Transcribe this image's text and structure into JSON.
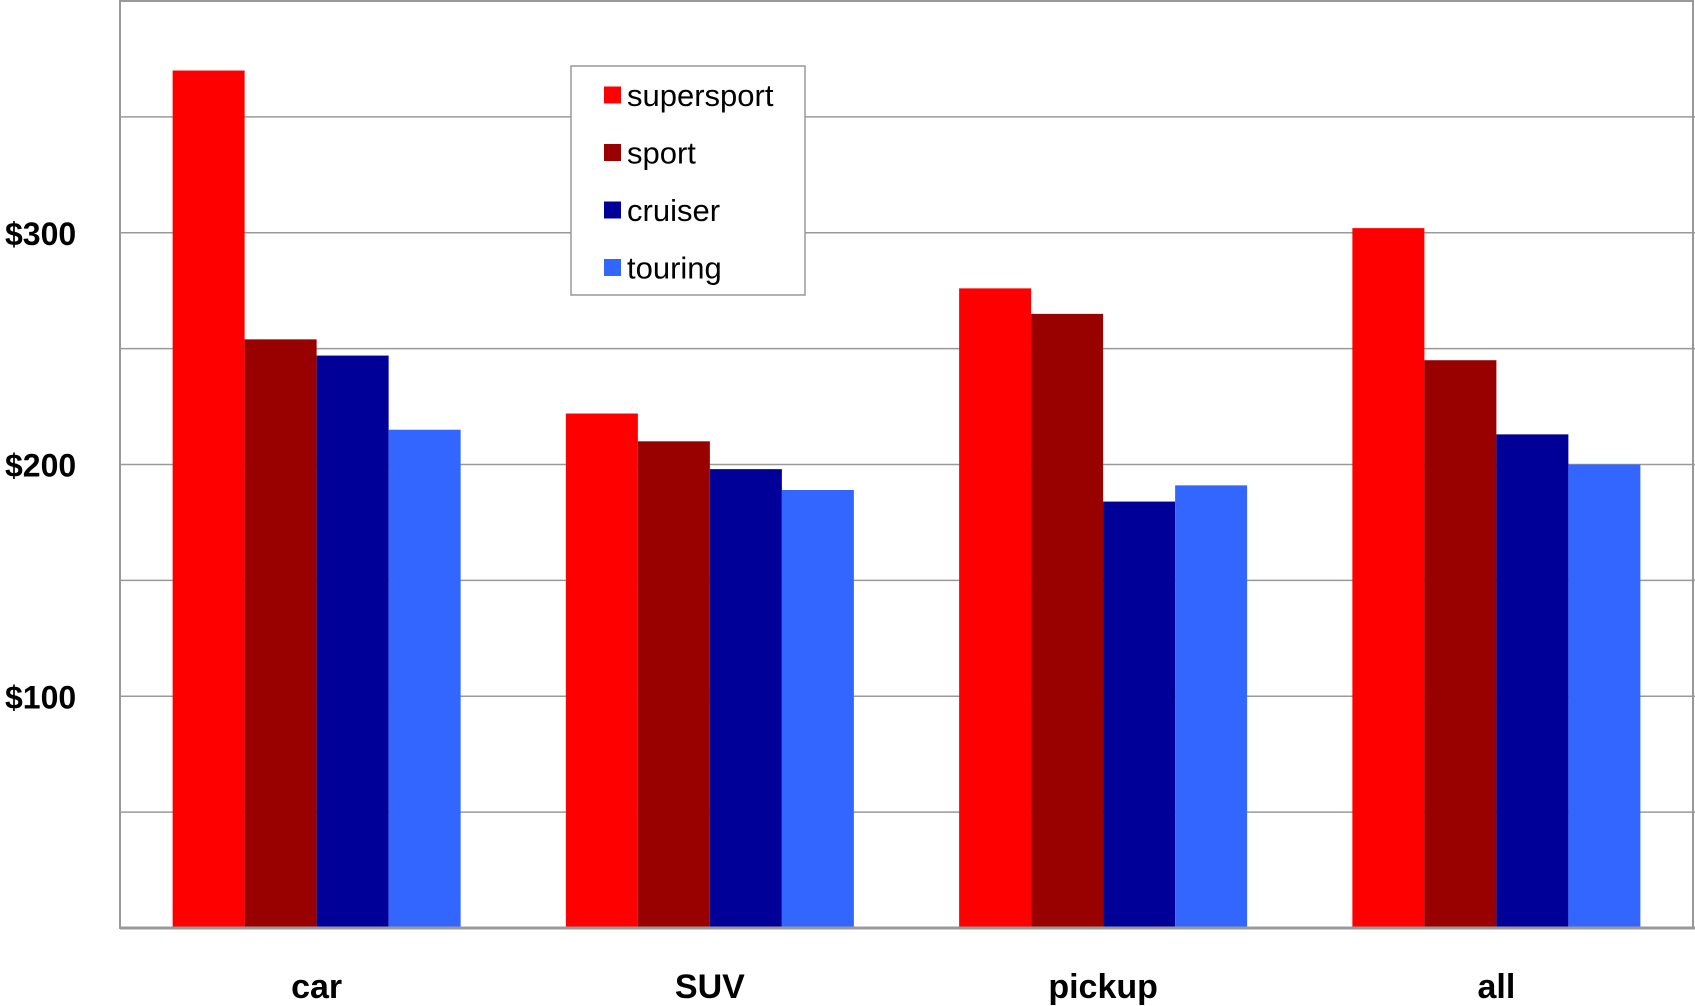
{
  "chart_data": {
    "type": "bar",
    "title": "",
    "xlabel": "",
    "ylabel": "",
    "categories": [
      "car",
      "SUV",
      "pickup",
      "all"
    ],
    "series": [
      {
        "name": "supersport",
        "color": "#ff0000",
        "values": [
          370,
          222,
          276,
          302
        ]
      },
      {
        "name": "sport",
        "color": "#990000",
        "values": [
          254,
          210,
          265,
          245
        ]
      },
      {
        "name": "cruiser",
        "color": "#000099",
        "values": [
          247,
          198,
          184,
          213
        ]
      },
      {
        "name": "touring",
        "color": "#3366ff",
        "values": [
          215,
          189,
          191,
          200
        ]
      }
    ],
    "ylim": [
      0,
      400
    ],
    "yticks": [
      0,
      50,
      100,
      150,
      200,
      250,
      300,
      350,
      400
    ],
    "ytick_labels": {
      "100": "$100",
      "200": "$200",
      "300": "$300"
    },
    "grid": true,
    "legend_position": "top-center"
  }
}
